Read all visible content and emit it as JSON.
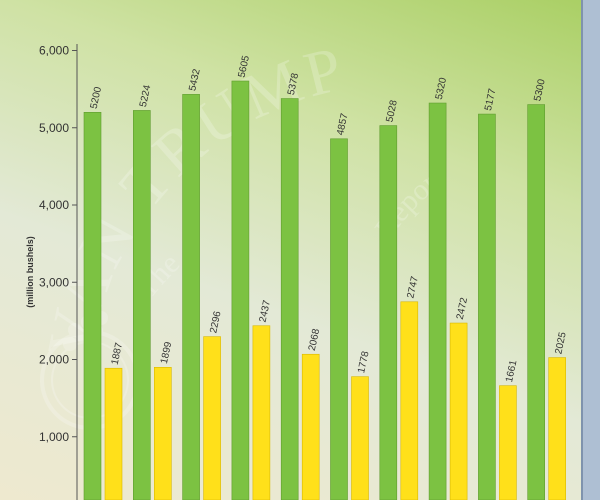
{
  "chart_data": {
    "type": "bar",
    "title": "",
    "xlabel": "",
    "ylabel": "(million bushels)",
    "ylim": [
      0,
      6000
    ],
    "yticks": [
      "1,000",
      "2,000",
      "3,000",
      "4,000",
      "5,000",
      "6,000"
    ],
    "grid": false,
    "series": [
      {
        "values": [
          5200,
          5224,
          5432,
          5605,
          5378,
          4857,
          5028,
          5320,
          5177,
          5300
        ],
        "color": "#7cc242"
      },
      {
        "values": [
          1887,
          1899,
          2296,
          2437,
          2068,
          1778,
          2747,
          2472,
          1661,
          2025
        ],
        "color": "#ffe01a"
      }
    ]
  },
  "watermark": {
    "line1": "The",
    "line2": "VAN TRUMP",
    "line3": "Report"
  }
}
